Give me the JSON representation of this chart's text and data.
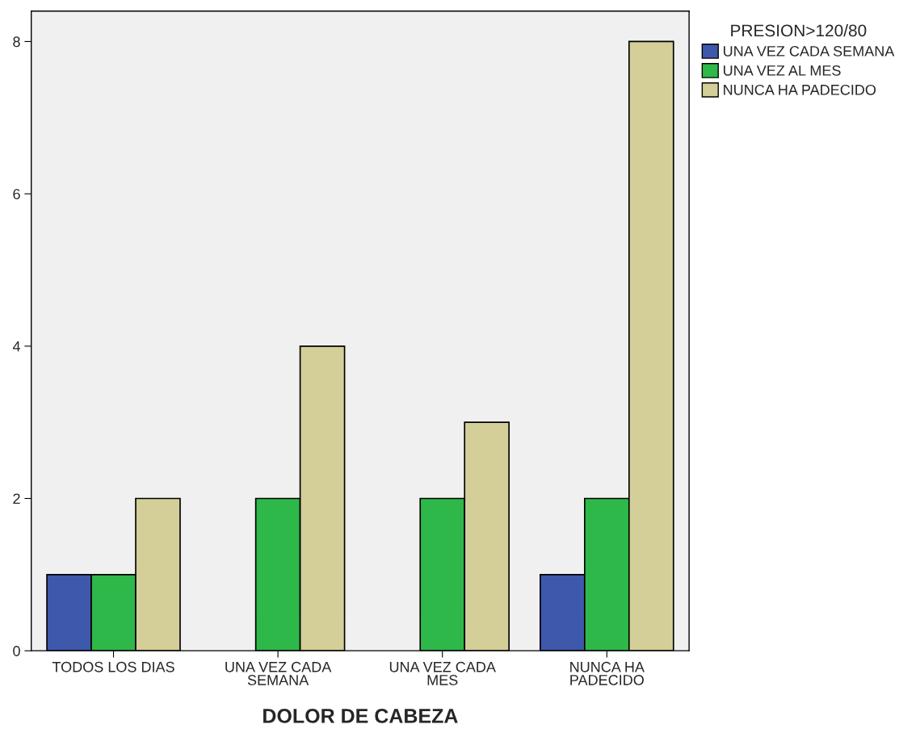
{
  "chart_data": {
    "type": "bar",
    "xlabel": "DOLOR DE CABEZA",
    "legend_title": "PRESION>120/80",
    "categories": [
      "TODOS LOS DIAS",
      "UNA VEZ CADA\nSEMANA",
      "UNA VEZ CADA\nMES",
      "NUNCA HA\nPADECIDO"
    ],
    "series": [
      {
        "name": "UNA VEZ CADA SEMANA",
        "color": "#3e58ac",
        "values": [
          1,
          null,
          null,
          1
        ]
      },
      {
        "name": "UNA VEZ AL MES",
        "color": "#2fb84a",
        "values": [
          1,
          2,
          2,
          2
        ]
      },
      {
        "name": "NUNCA HA PADECIDO",
        "color": "#d4cf98",
        "values": [
          2,
          4,
          3,
          8
        ]
      }
    ],
    "ylim": [
      0,
      8.4
    ],
    "yticks": [
      0,
      2,
      4,
      6,
      8
    ],
    "grid": false,
    "legend": "top right"
  }
}
